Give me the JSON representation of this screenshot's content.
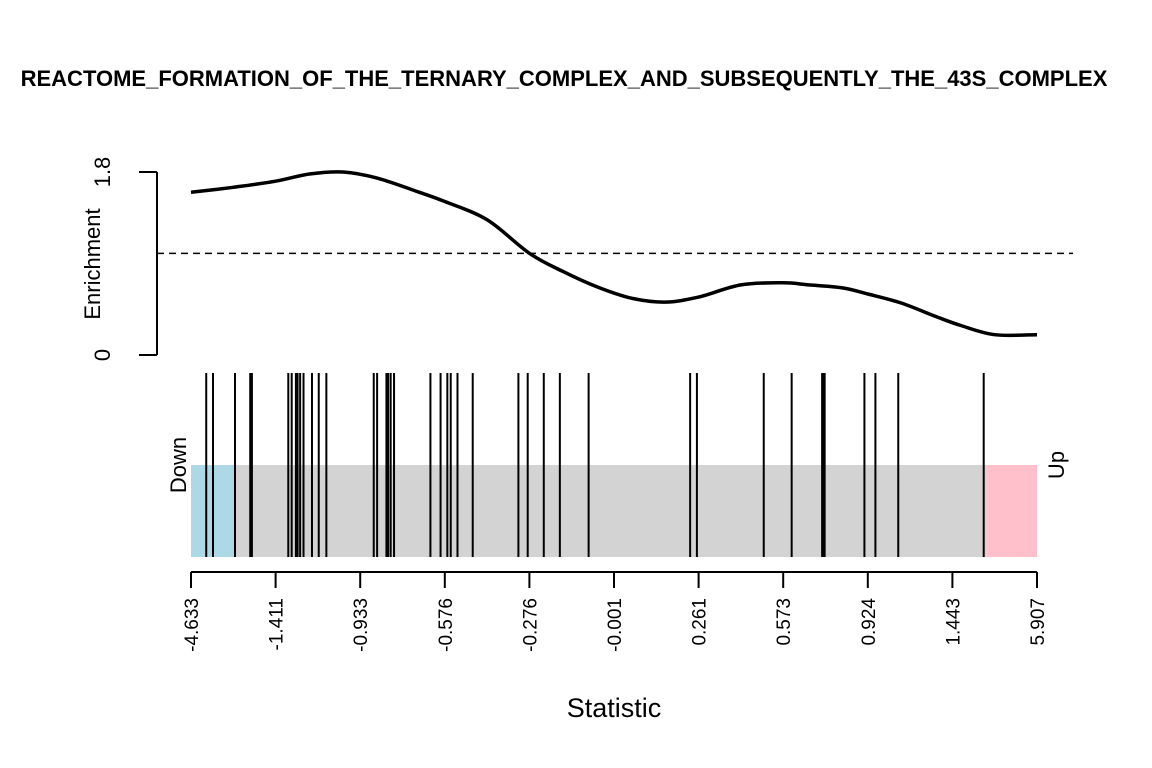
{
  "chart_data": {
    "type": "barcode",
    "title": "REACTOME_FORMATION_OF_THE_TERNARY_COMPLEX_AND_SUBSEQUENTLY_THE_43S_COMPLEX",
    "xlabel": "Statistic",
    "ylabel": "Enrichment",
    "ylim": [
      0,
      1.8
    ],
    "y_ticks": [
      "0",
      "1.8"
    ],
    "x_tick_labels": [
      "-4.633",
      "-1.411",
      "-0.933",
      "-0.576",
      "-0.276",
      "-0.001",
      "0.261",
      "0.573",
      "0.924",
      "1.443",
      "5.907"
    ],
    "baseline": 1.0,
    "down_label": "Down",
    "up_label": "Up",
    "regions": {
      "down_color": "#add8e6",
      "mid_color": "#d3d3d3",
      "up_color": "#ffc0cb",
      "down_end": 0.053,
      "up_start": 0.94
    },
    "enrichment_curve": {
      "x": [
        0.0,
        0.05,
        0.1,
        0.14,
        0.18,
        0.22,
        0.27,
        0.3,
        0.35,
        0.4,
        0.44,
        0.48,
        0.52,
        0.56,
        0.6,
        0.65,
        0.7,
        0.73,
        0.77,
        0.8,
        0.84,
        0.88,
        0.91,
        0.95,
        1.0
      ],
      "y": [
        1.6,
        1.65,
        1.71,
        1.78,
        1.8,
        1.74,
        1.6,
        1.51,
        1.33,
        1.0,
        0.82,
        0.67,
        0.56,
        0.52,
        0.57,
        0.69,
        0.71,
        0.69,
        0.66,
        0.6,
        0.51,
        0.38,
        0.29,
        0.2,
        0.2
      ]
    },
    "barcode_positions": [
      0.018,
      0.026,
      0.052,
      0.07,
      0.072,
      0.115,
      0.119,
      0.124,
      0.126,
      0.129,
      0.133,
      0.143,
      0.151,
      0.16,
      0.216,
      0.22,
      0.231,
      0.233,
      0.236,
      0.24,
      0.283,
      0.295,
      0.303,
      0.307,
      0.315,
      0.333,
      0.387,
      0.398,
      0.417,
      0.436,
      0.47,
      0.59,
      0.598,
      0.677,
      0.71,
      0.746,
      0.747,
      0.748,
      0.749,
      0.796,
      0.809,
      0.836,
      0.937
    ]
  }
}
